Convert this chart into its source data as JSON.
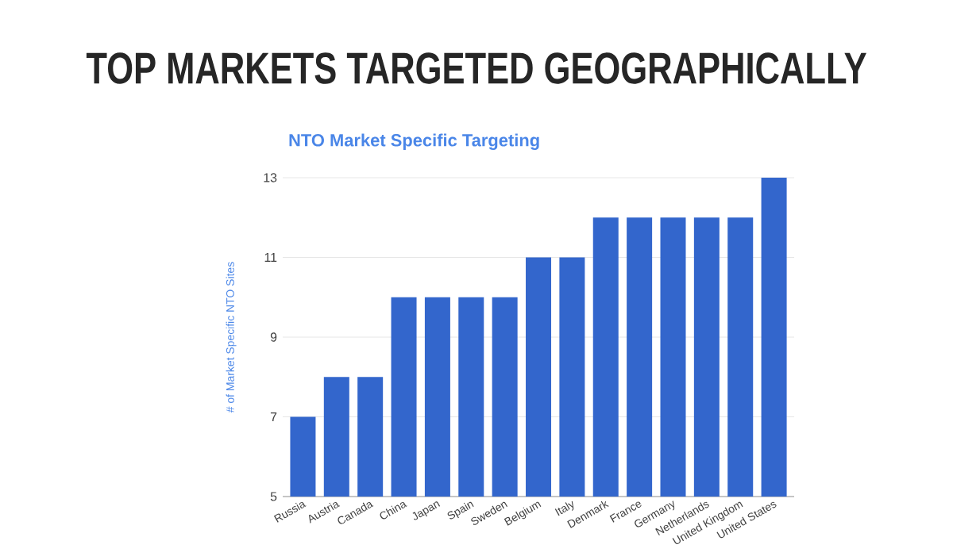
{
  "chart_data": {
    "type": "bar",
    "title": "TOP MARKETS TARGETED GEOGRAPHICALLY",
    "subtitle": "NTO Market Specific Targeting",
    "ylabel": "# of Market Specific NTO Sites",
    "categories": [
      "Russia",
      "Austria",
      "Canada",
      "China",
      "Japan",
      "Spain",
      "Sweden",
      "Belgium",
      "Italy",
      "Denmark",
      "France",
      "Germany",
      "Netherlands",
      "United Kingdom",
      "United States"
    ],
    "values": [
      7,
      8,
      8,
      10,
      10,
      10,
      10,
      11,
      11,
      12,
      12,
      12,
      12,
      12,
      13
    ],
    "color": "#3366cc",
    "ylim": [
      5,
      13
    ],
    "yticks": [
      5,
      7,
      9,
      11,
      13
    ],
    "grid": "y"
  }
}
